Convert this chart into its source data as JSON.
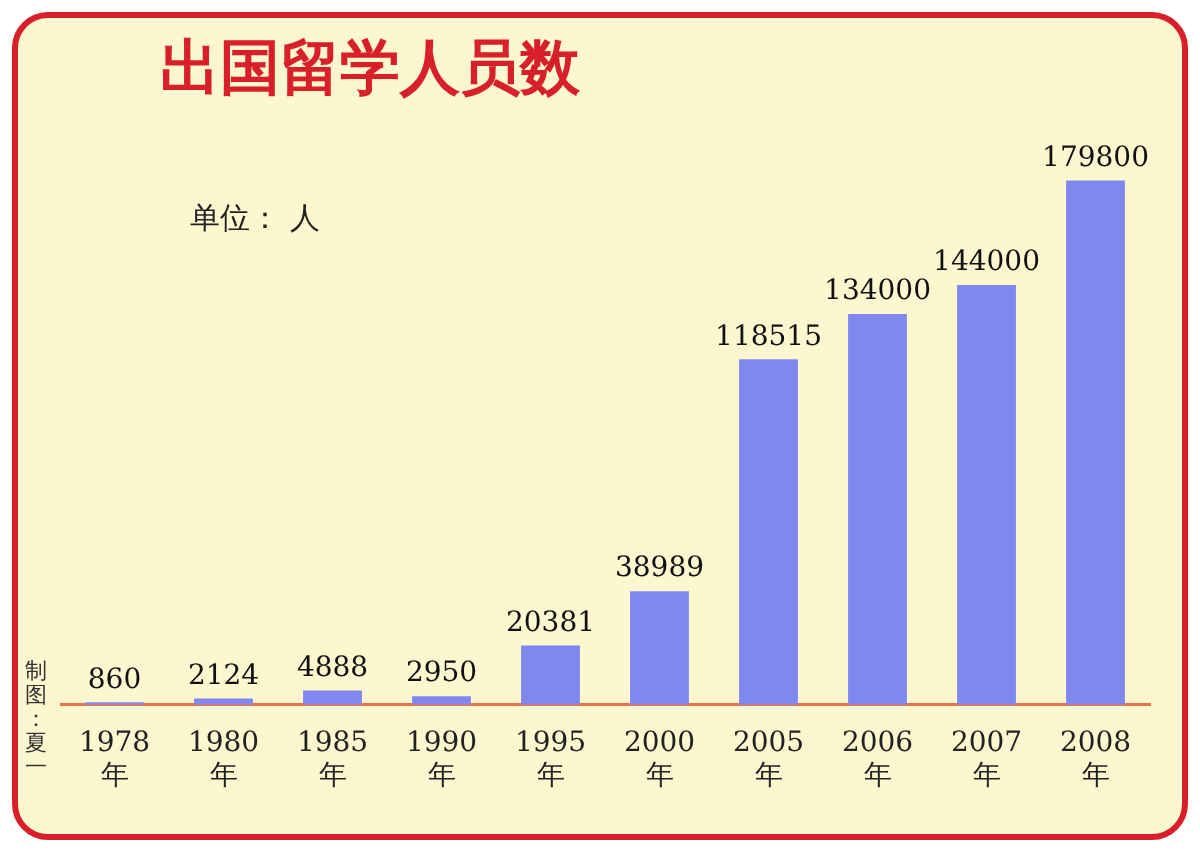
{
  "chart_data": {
    "type": "bar",
    "title": "出国留学人员数",
    "categories": [
      "1978年",
      "1980年",
      "1985年",
      "1990年",
      "1995年",
      "2000年",
      "2005年",
      "2006年",
      "2007年",
      "2008年"
    ],
    "values": [
      860,
      2124,
      4888,
      2950,
      20381,
      38989,
      118515,
      134000,
      144000,
      179800
    ],
    "color": "#8088f0",
    "tick_labels": "x",
    "data_labels": true,
    "annotations": [
      "单位： 人",
      "制图：夏一"
    ]
  }
}
